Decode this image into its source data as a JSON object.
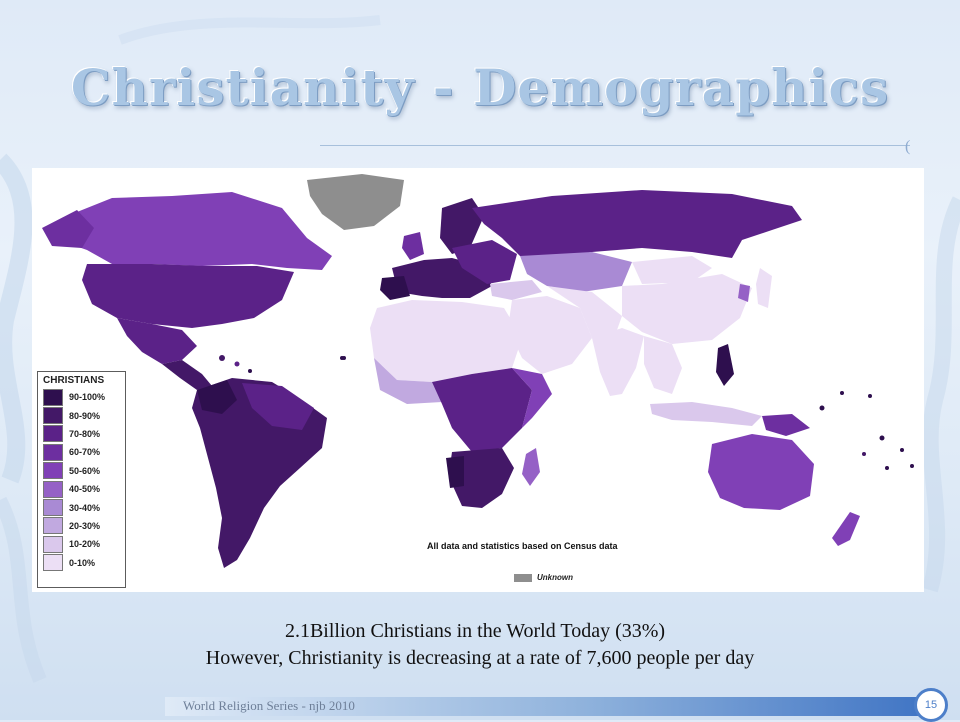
{
  "slide": {
    "title": "Christianity - Demographics",
    "caption_line1": "2.1Billion Christians in the World Today  (33%)",
    "caption_line2": "However, Christianity is decreasing at a rate of  7,600  people per day",
    "footer": "World Religion Series - njb 2010",
    "page_number": "15"
  },
  "map": {
    "legend_title": "CHRISTIANS",
    "legend": [
      {
        "label": "90-100%",
        "color": "#2e0f4e"
      },
      {
        "label": "80-90%",
        "color": "#431867"
      },
      {
        "label": "70-80%",
        "color": "#5b2288"
      },
      {
        "label": "60-70%",
        "color": "#6d2fa0"
      },
      {
        "label": "50-60%",
        "color": "#8040b6"
      },
      {
        "label": "40-50%",
        "color": "#9561c6"
      },
      {
        "label": "30-40%",
        "color": "#a98ad4"
      },
      {
        "label": "20-30%",
        "color": "#c1a9e0"
      },
      {
        "label": "10-20%",
        "color": "#dac8ec"
      },
      {
        "label": "0-10%",
        "color": "#ecdff5"
      }
    ],
    "census_note": "All data and statistics based on Census data",
    "unknown_label": "Unknown",
    "unknown_color": "#8e8e8e"
  }
}
